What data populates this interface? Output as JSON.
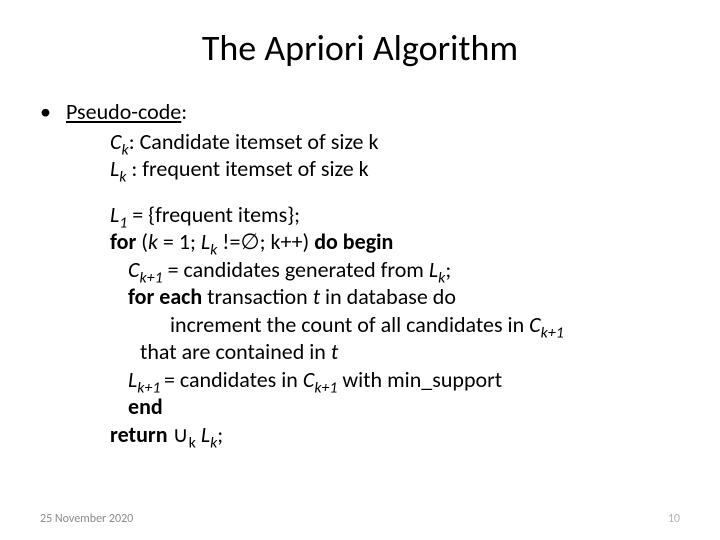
{
  "title": "The Apriori Algorithm",
  "bullet_symbol": "•",
  "pseudo_label": "Pseudo-code",
  "colon": ":",
  "line_ck_prefix": "C",
  "line_ck_sub": "k",
  "line_ck_text": ": Candidate itemset of size k",
  "line_lk_prefix": "L",
  "line_lk_sub": "k",
  "line_lk_text": " : frequent itemset of size k",
  "line_l1_prefix": "L",
  "line_l1_sub": "1",
  "line_l1_text": " = {frequent items};",
  "for_kw": "for",
  "for_cond_open": " (",
  "for_cond_k1": "k",
  "for_cond_eq": " = 1; ",
  "for_cond_lk_l": "L",
  "for_cond_lk_sub": "k",
  "for_cond_ne": " !=",
  "empty_set": "∅",
  "for_cond_close": "; k++) ",
  "do_begin": "do begin",
  "gen_c_prefix": "C",
  "gen_c_sub": "k+1",
  "gen_text_a": " = candidates generated from ",
  "gen_l_prefix": "L",
  "gen_l_sub": "k",
  "gen_semi": ";",
  "foreach_kw": "for each ",
  "foreach_t": "transaction ",
  "foreach_tvar": "t",
  "foreach_rest": " in database do",
  "inc_text_a": "increment the count of all candidates in ",
  "inc_c_prefix": "C",
  "inc_c_sub": "k+1",
  "contained_text_a": "that are contained in ",
  "contained_t": "t",
  "lk1_l_prefix": "L",
  "lk1_l_sub": "k+1 ",
  "lk1_eq": " = candidates in ",
  "lk1_c_prefix": "C",
  "lk1_c_sub": "k+1",
  "lk1_rest": " with min_support",
  "end_kw": "end",
  "return_kw": "return",
  "return_sym": " ∪",
  "return_sub": "k",
  "return_sp": " ",
  "return_l_prefix": "L",
  "return_l_sub": "k",
  "return_semi": ";",
  "footer_date": "25 November 2020",
  "footer_page": "10"
}
